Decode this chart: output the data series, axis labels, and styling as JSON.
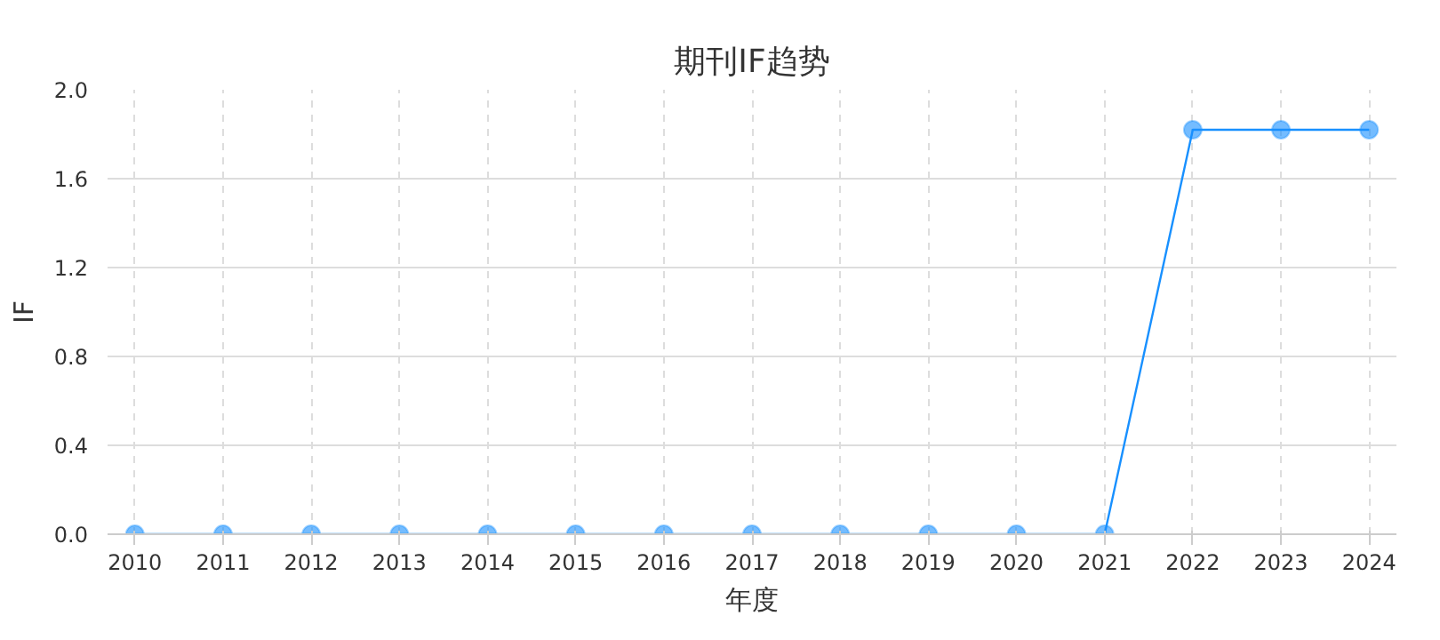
{
  "chart_data": {
    "type": "line",
    "title": "期刊IF趋势",
    "xlabel": "年度",
    "ylabel": "IF",
    "categories": [
      "2010",
      "2011",
      "2012",
      "2013",
      "2014",
      "2015",
      "2016",
      "2017",
      "2018",
      "2019",
      "2020",
      "2021",
      "2022",
      "2023",
      "2024"
    ],
    "series": [
      {
        "color": "#1890ff",
        "values": [
          0,
          0,
          0,
          0,
          0,
          0,
          0,
          0,
          0,
          0,
          0,
          0,
          1.82,
          1.82,
          1.82
        ]
      }
    ],
    "ylim": [
      0,
      2.0
    ],
    "yticks": [
      {
        "value": 0,
        "label": "0.0"
      },
      0.4,
      0.8,
      1.2,
      1.6,
      {
        "value": 2,
        "label": "2.0"
      }
    ],
    "grid": true,
    "marker": "circle",
    "line_style": "solid"
  }
}
